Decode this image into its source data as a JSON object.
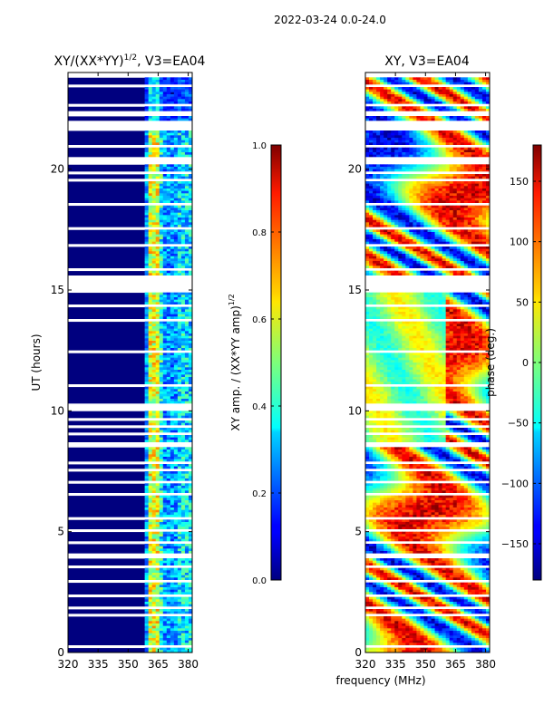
{
  "figure_title": "2022-03-24 0.0-24.0",
  "shared_xlabel": "frequency (MHz)",
  "chart_data": [
    {
      "type": "heatmap",
      "title_main": "XY/(XX*YY)",
      "title_exp": "1/2",
      "title_suffix": ", V3=EA04",
      "xlabel": "",
      "ylabel": "UT (hours)",
      "xlim": [
        320,
        382
      ],
      "ylim": [
        0,
        24
      ],
      "xticks": [
        320,
        335,
        350,
        365,
        380
      ],
      "yticks": [
        0,
        5,
        10,
        15,
        20
      ],
      "colorbar": {
        "label_main": "XY amp. / (XX*YY amp)",
        "label_exp": "1/2",
        "range": [
          0.0,
          1.0
        ],
        "ticks": [
          0.0,
          0.2,
          0.4,
          0.6,
          0.8,
          1.0
        ],
        "tick_labels": [
          "0.0",
          "0.2",
          "0.4",
          "0.6",
          "0.8",
          "1.0"
        ]
      }
    },
    {
      "type": "heatmap",
      "title": "XY, V3=EA04",
      "xlabel": "",
      "ylabel": "",
      "xlim": [
        320,
        382
      ],
      "ylim": [
        0,
        24
      ],
      "xticks": [
        320,
        335,
        350,
        365,
        380
      ],
      "yticks": [
        0,
        5,
        10,
        15,
        20
      ],
      "colorbar": {
        "label": "phase (deg.)",
        "range": [
          -180,
          180
        ],
        "ticks": [
          -150,
          -100,
          -50,
          0,
          50,
          100,
          150
        ],
        "tick_labels": [
          "−150",
          "−100",
          "−50",
          "0",
          "50",
          "100",
          "150"
        ]
      }
    }
  ]
}
